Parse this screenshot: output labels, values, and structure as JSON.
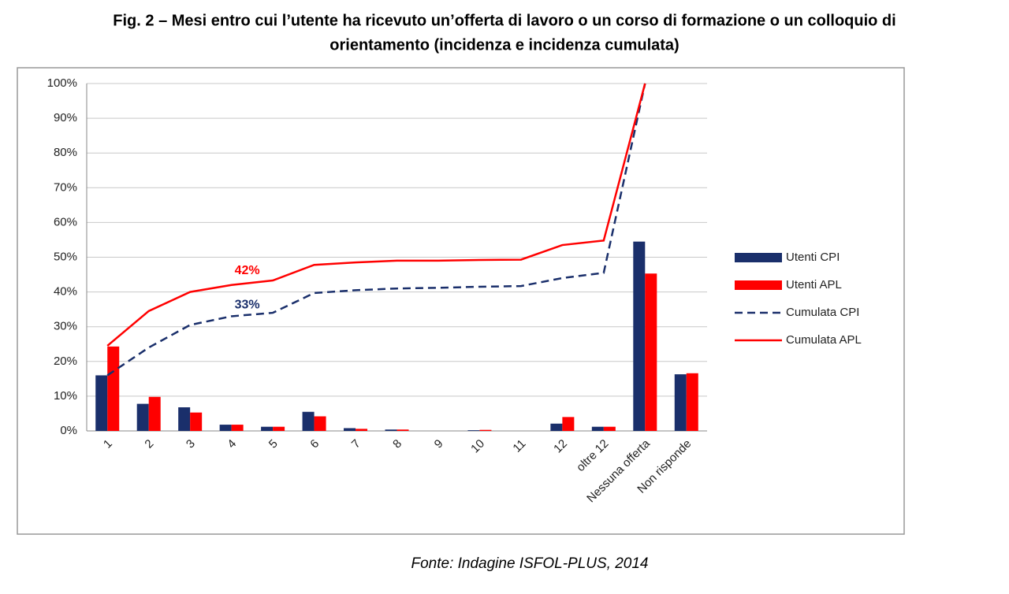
{
  "chart_data": {
    "type": "bar",
    "title": "Fig. 2 – Mesi entro cui l’utente ha ricevuto un’offerta di lavoro o un corso di formazione o un colloquio di",
    "subtitle": "orientamento (incidenza e incidenza cumulata)",
    "source": "Fonte: Indagine ISFOL-PLUS, 2014",
    "categories": [
      "1",
      "2",
      "3",
      "4",
      "5",
      "6",
      "7",
      "8",
      "9",
      "10",
      "11",
      "12",
      "oltre 12",
      "Nessuna offerta",
      "Non risponde"
    ],
    "series": [
      {
        "name": "Utenti CPI",
        "type": "bar",
        "color": "#1a2f6b",
        "values": [
          16,
          7.8,
          6.8,
          1.8,
          1.2,
          5.5,
          0.8,
          0.4,
          0,
          0.2,
          0,
          2.1,
          1.2,
          54.5,
          16.3
        ]
      },
      {
        "name": "Utenti APL",
        "type": "bar",
        "color": "#ff0000",
        "values": [
          24.3,
          9.8,
          5.3,
          1.8,
          1.2,
          4.2,
          0.6,
          0.4,
          0,
          0.3,
          0,
          4.0,
          1.2,
          45.3,
          16.6
        ]
      },
      {
        "name": "Cumulata CPI",
        "type": "line",
        "dashed": true,
        "color": "#1a2f6b",
        "values": [
          16,
          24,
          30.5,
          33,
          34,
          39.7,
          40.5,
          41,
          41.2,
          41.5,
          41.7,
          44,
          45.5,
          100,
          null
        ]
      },
      {
        "name": "Cumulata APL",
        "type": "line",
        "dashed": false,
        "color": "#ff0000",
        "values": [
          24.5,
          34.5,
          40,
          42,
          43.3,
          47.8,
          48.5,
          49,
          49,
          49.2,
          49.3,
          53.5,
          54.8,
          100,
          null
        ]
      }
    ],
    "annotations": [
      {
        "text": "42%",
        "series": 3,
        "index": 3
      },
      {
        "text": "33%",
        "series": 2,
        "index": 3
      }
    ],
    "ylim": [
      0,
      100
    ],
    "yticks": [
      {
        "value": 0,
        "label": "0%"
      },
      {
        "value": 10,
        "label": "10%"
      },
      {
        "value": 20,
        "label": "20%"
      },
      {
        "value": 30,
        "label": "30%"
      },
      {
        "value": 40,
        "label": "40%"
      },
      {
        "value": 50,
        "label": "50%"
      },
      {
        "value": 60,
        "label": "60%"
      },
      {
        "value": 70,
        "label": "70%"
      },
      {
        "value": 80,
        "label": "80%"
      },
      {
        "value": 90,
        "label": "90%"
      },
      {
        "value": 100,
        "label": "100%"
      }
    ],
    "grid": true,
    "legend": "right"
  }
}
